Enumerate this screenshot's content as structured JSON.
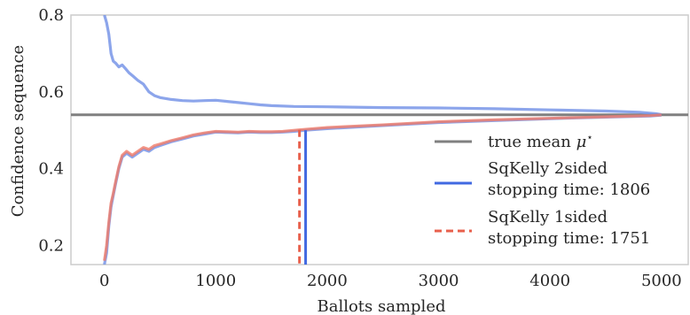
{
  "chart_data": {
    "type": "line",
    "title": "",
    "xlabel": "Ballots sampled",
    "ylabel": "Confidence sequence",
    "xlim": [
      -300,
      5240
    ],
    "ylim": [
      0.15,
      0.8
    ],
    "xticks": [
      0,
      1000,
      2000,
      3000,
      4000,
      5000
    ],
    "xtick_labels": [
      "0",
      "1000",
      "2000",
      "3000",
      "4000",
      "5000"
    ],
    "yticks": [
      0.2,
      0.4,
      0.6,
      0.8
    ],
    "ytick_labels": [
      "0.2",
      "0.4",
      "0.6",
      "0.8"
    ],
    "grid": false,
    "legend_position": "lower-right",
    "true_mean": 0.54,
    "series": [
      {
        "name": "true mean μ⋆",
        "role": "hline",
        "color": "#808080",
        "value": 0.54
      },
      {
        "name": "SqKelly 2sided stopping time: 1806",
        "role": "stopping-line",
        "color": "#4169e1",
        "style": "solid",
        "stopping_time": 1806,
        "band_color": "#6f8ee6",
        "upper": [
          [
            0,
            0.8
          ],
          [
            20,
            0.78
          ],
          [
            40,
            0.75
          ],
          [
            60,
            0.7
          ],
          [
            80,
            0.68
          ],
          [
            100,
            0.675
          ],
          [
            130,
            0.665
          ],
          [
            160,
            0.67
          ],
          [
            190,
            0.66
          ],
          [
            220,
            0.65
          ],
          [
            260,
            0.64
          ],
          [
            300,
            0.63
          ],
          [
            350,
            0.62
          ],
          [
            400,
            0.6
          ],
          [
            450,
            0.59
          ],
          [
            500,
            0.585
          ],
          [
            600,
            0.58
          ],
          [
            700,
            0.577
          ],
          [
            800,
            0.576
          ],
          [
            900,
            0.577
          ],
          [
            1000,
            0.578
          ],
          [
            1100,
            0.575
          ],
          [
            1200,
            0.572
          ],
          [
            1300,
            0.569
          ],
          [
            1400,
            0.566
          ],
          [
            1500,
            0.564
          ],
          [
            1700,
            0.562
          ],
          [
            2000,
            0.561
          ],
          [
            2500,
            0.559
          ],
          [
            3000,
            0.558
          ],
          [
            3500,
            0.556
          ],
          [
            4000,
            0.553
          ],
          [
            4500,
            0.55
          ],
          [
            4800,
            0.547
          ],
          [
            4950,
            0.543
          ],
          [
            5000,
            0.541
          ]
        ],
        "lower": [
          [
            0,
            0.15
          ],
          [
            20,
            0.18
          ],
          [
            40,
            0.25
          ],
          [
            60,
            0.3
          ],
          [
            80,
            0.33
          ],
          [
            100,
            0.36
          ],
          [
            130,
            0.4
          ],
          [
            160,
            0.43
          ],
          [
            200,
            0.44
          ],
          [
            250,
            0.43
          ],
          [
            300,
            0.44
          ],
          [
            350,
            0.45
          ],
          [
            400,
            0.445
          ],
          [
            450,
            0.455
          ],
          [
            500,
            0.46
          ],
          [
            600,
            0.47
          ],
          [
            700,
            0.477
          ],
          [
            800,
            0.485
          ],
          [
            900,
            0.49
          ],
          [
            1000,
            0.495
          ],
          [
            1100,
            0.494
          ],
          [
            1200,
            0.493
          ],
          [
            1300,
            0.495
          ],
          [
            1400,
            0.494
          ],
          [
            1500,
            0.494
          ],
          [
            1600,
            0.495
          ],
          [
            1700,
            0.497
          ],
          [
            1806,
            0.5
          ],
          [
            2000,
            0.504
          ],
          [
            2500,
            0.512
          ],
          [
            3000,
            0.52
          ],
          [
            3500,
            0.525
          ],
          [
            4000,
            0.53
          ],
          [
            4500,
            0.534
          ],
          [
            4900,
            0.537
          ],
          [
            5000,
            0.539
          ]
        ]
      },
      {
        "name": "SqKelly 1sided stopping time: 1751",
        "role": "stopping-line",
        "color": "#e8604c",
        "style": "dashed",
        "stopping_time": 1751,
        "band_color": "#f07a68",
        "lower": [
          [
            0,
            0.16
          ],
          [
            20,
            0.2
          ],
          [
            40,
            0.26
          ],
          [
            60,
            0.31
          ],
          [
            80,
            0.335
          ],
          [
            100,
            0.365
          ],
          [
            130,
            0.405
          ],
          [
            160,
            0.435
          ],
          [
            200,
            0.445
          ],
          [
            250,
            0.435
          ],
          [
            300,
            0.445
          ],
          [
            350,
            0.455
          ],
          [
            400,
            0.45
          ],
          [
            450,
            0.46
          ],
          [
            500,
            0.464
          ],
          [
            600,
            0.473
          ],
          [
            700,
            0.48
          ],
          [
            800,
            0.488
          ],
          [
            900,
            0.493
          ],
          [
            1000,
            0.497
          ],
          [
            1100,
            0.496
          ],
          [
            1200,
            0.495
          ],
          [
            1300,
            0.497
          ],
          [
            1400,
            0.496
          ],
          [
            1500,
            0.496
          ],
          [
            1600,
            0.497
          ],
          [
            1751,
            0.501
          ],
          [
            2000,
            0.507
          ],
          [
            2500,
            0.514
          ],
          [
            3000,
            0.522
          ],
          [
            3500,
            0.527
          ],
          [
            4000,
            0.531
          ],
          [
            4500,
            0.535
          ],
          [
            4900,
            0.538
          ],
          [
            5000,
            0.54
          ]
        ]
      }
    ]
  }
}
